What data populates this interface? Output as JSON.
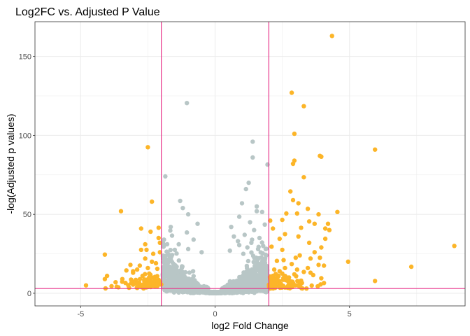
{
  "chart_data": {
    "type": "scatter",
    "title": "Log2FC vs. Adjusted P Value",
    "xlabel": "log2 Fold Change",
    "ylabel": "-log(Adjusted p values)",
    "xlim": [
      -6.7,
      9.3
    ],
    "ylim": [
      -8,
      172
    ],
    "x_ticks": [
      -5,
      0,
      5
    ],
    "y_ticks": [
      0,
      50,
      100,
      150
    ],
    "x_minor_ticks": [
      -2.5,
      2.5,
      7.5
    ],
    "y_minor_ticks": [
      25,
      75,
      125
    ],
    "grid": true,
    "legend": "none",
    "colors": {
      "significant": "#FCB528",
      "not_significant": "#B8C6C6",
      "threshold_line": "#E8338A",
      "grid": "#EBEBEB",
      "panel_border": "#333333"
    },
    "thresholds": {
      "log2fc": [
        -2,
        2
      ],
      "neg_log_padj": 3
    },
    "series": [
      {
        "points": [
          [
            4.35,
            163
          ],
          [
            2.85,
            127
          ],
          [
            3.3,
            118.5
          ],
          [
            2.95,
            101
          ],
          [
            3.9,
            87
          ],
          [
            3.95,
            86.5
          ],
          [
            5.95,
            91
          ],
          [
            2.95,
            84
          ],
          [
            2.9,
            82
          ],
          [
            3.3,
            73.5
          ],
          [
            2.8,
            64.5
          ],
          [
            2.9,
            59
          ],
          [
            3.1,
            57
          ],
          [
            4.55,
            51.5
          ],
          [
            2.65,
            50.5
          ],
          [
            3.05,
            50.5
          ],
          [
            3.45,
            53.5
          ],
          [
            3.85,
            50
          ],
          [
            4.2,
            44
          ],
          [
            3.5,
            45.5
          ],
          [
            2.5,
            46.5
          ],
          [
            2.05,
            46
          ],
          [
            2.15,
            41
          ],
          [
            2.6,
            37.5
          ],
          [
            3.2,
            41.5
          ],
          [
            3.7,
            44
          ],
          [
            4.1,
            41
          ],
          [
            4.25,
            40
          ],
          [
            3.1,
            36
          ],
          [
            2.4,
            34.5
          ],
          [
            4.1,
            34.5
          ],
          [
            3.5,
            32
          ],
          [
            3.95,
            29
          ],
          [
            8.9,
            30
          ],
          [
            2.1,
            29.5
          ],
          [
            2.5,
            27.5
          ],
          [
            3.0,
            22.5
          ],
          [
            3.7,
            26
          ],
          [
            3.9,
            22.5
          ],
          [
            3.55,
            22
          ],
          [
            2.3,
            20.5
          ],
          [
            4.95,
            20
          ],
          [
            3.45,
            16
          ],
          [
            3.85,
            18
          ],
          [
            4.05,
            17.5
          ],
          [
            2.6,
            16
          ],
          [
            2.2,
            15
          ],
          [
            3.05,
            15
          ],
          [
            3.3,
            13.5
          ],
          [
            3.55,
            13
          ],
          [
            2.5,
            12.5
          ],
          [
            2.95,
            12
          ],
          [
            3.65,
            11.5
          ],
          [
            2.15,
            11
          ],
          [
            2.75,
            10
          ],
          [
            3.95,
            9.5
          ],
          [
            5.95,
            7.8
          ],
          [
            7.3,
            16.8
          ],
          [
            2.3,
            8
          ],
          [
            3.2,
            8
          ],
          [
            2.1,
            7
          ],
          [
            2.45,
            6
          ],
          [
            3.0,
            5
          ],
          [
            4.05,
            6.5
          ],
          [
            2.25,
            4.5
          ],
          [
            2.7,
            3.5
          ],
          [
            3.4,
            3
          ],
          [
            2.05,
            9
          ],
          [
            2.4,
            14
          ],
          [
            2.85,
            18.5
          ],
          [
            3.15,
            24
          ],
          [
            2.55,
            21
          ],
          [
            -2.5,
            92.5
          ],
          [
            -2.35,
            58
          ],
          [
            -3.5,
            52
          ],
          [
            -2.75,
            41
          ],
          [
            -2.1,
            41.5
          ],
          [
            -2.4,
            39
          ],
          [
            -2.1,
            35
          ],
          [
            -2.05,
            32
          ],
          [
            -2.6,
            31
          ],
          [
            -2.75,
            27.5
          ],
          [
            -2.55,
            27.5
          ],
          [
            -2.3,
            25
          ],
          [
            -2.05,
            26
          ],
          [
            -4.1,
            24.5
          ],
          [
            -2.6,
            22
          ],
          [
            -2.35,
            20
          ],
          [
            -2.8,
            17.5
          ],
          [
            -3.15,
            18
          ],
          [
            -3.3,
            14.5
          ],
          [
            -2.5,
            16
          ],
          [
            -2.9,
            15
          ],
          [
            -3.05,
            13
          ],
          [
            -2.15,
            15.5
          ],
          [
            -2.45,
            12.5
          ],
          [
            -2.7,
            11
          ],
          [
            -3.45,
            9
          ],
          [
            -2.35,
            10
          ],
          [
            -2.1,
            8.5
          ],
          [
            -4.1,
            9
          ],
          [
            -3.7,
            7
          ],
          [
            -4.8,
            5
          ],
          [
            -3.05,
            5.5
          ],
          [
            -2.6,
            6
          ],
          [
            -2.3,
            7
          ],
          [
            -3.85,
            4.5
          ],
          [
            -3.2,
            3.5
          ],
          [
            -2.5,
            4
          ],
          [
            -2.15,
            4.5
          ],
          [
            -2.85,
            4.5
          ],
          [
            -3.6,
            3.8
          ],
          [
            -2.95,
            8.5
          ],
          [
            -2.2,
            19
          ]
        ]
      },
      {
        "points": [
          [
            -1.05,
            120.5
          ],
          [
            1.4,
            96
          ],
          [
            1.4,
            86
          ],
          [
            1.95,
            81.5
          ],
          [
            -1.85,
            74
          ],
          [
            1.25,
            70
          ],
          [
            1.15,
            66
          ],
          [
            -1.3,
            58.5
          ],
          [
            -1.2,
            54
          ],
          [
            1.55,
            55
          ],
          [
            1.0,
            57
          ],
          [
            -1.0,
            50
          ],
          [
            1.55,
            52
          ],
          [
            0.9,
            48.5
          ],
          [
            1.75,
            51.5
          ],
          [
            -0.65,
            44
          ],
          [
            1.3,
            45
          ],
          [
            -1.65,
            42
          ],
          [
            1.45,
            40
          ],
          [
            -1.05,
            38.5
          ],
          [
            0.6,
            42
          ],
          [
            1.85,
            43.5
          ],
          [
            -1.6,
            36.5
          ],
          [
            1.1,
            37
          ],
          [
            -0.8,
            34
          ],
          [
            0.7,
            36
          ],
          [
            1.65,
            35
          ],
          [
            -1.35,
            31
          ],
          [
            0.9,
            30.5
          ],
          [
            -1.9,
            30
          ],
          [
            1.2,
            29
          ],
          [
            -1.0,
            28
          ],
          [
            0.55,
            27
          ],
          [
            -0.5,
            26
          ],
          [
            1.6,
            28
          ],
          [
            -1.75,
            25
          ],
          [
            1.9,
            24
          ],
          [
            -1.9,
            34
          ],
          [
            -1.5,
            27.5
          ],
          [
            0.85,
            33
          ],
          [
            1.05,
            25
          ],
          [
            1.35,
            32
          ]
        ],
        "cloud": {
          "x_range": [
            -1.95,
            1.95
          ],
          "y_core": 3
        }
      }
    ]
  }
}
